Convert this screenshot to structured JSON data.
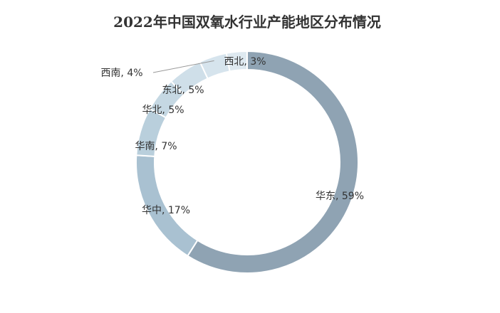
{
  "chart_data": {
    "type": "pie",
    "title": "2022年中国双氧水行业产能地区分布情况",
    "categories": [
      "华东",
      "华中",
      "华南",
      "华北",
      "东北",
      "西南",
      "西北"
    ],
    "values": [
      59,
      17,
      7,
      5,
      5,
      4,
      3
    ],
    "labels": [
      "华东, 59%",
      "华中, 17%",
      "华南, 7%",
      "华北, 5%",
      "东北, 5%",
      "西南, 4%",
      "西北, 3%"
    ],
    "colors": [
      "#8fa3b3",
      "#a9c1d1",
      "#b9cfdc",
      "#c5d8e3",
      "#cfdfe9",
      "#d6e4ed",
      "#dee9f0"
    ],
    "legend": "none"
  }
}
